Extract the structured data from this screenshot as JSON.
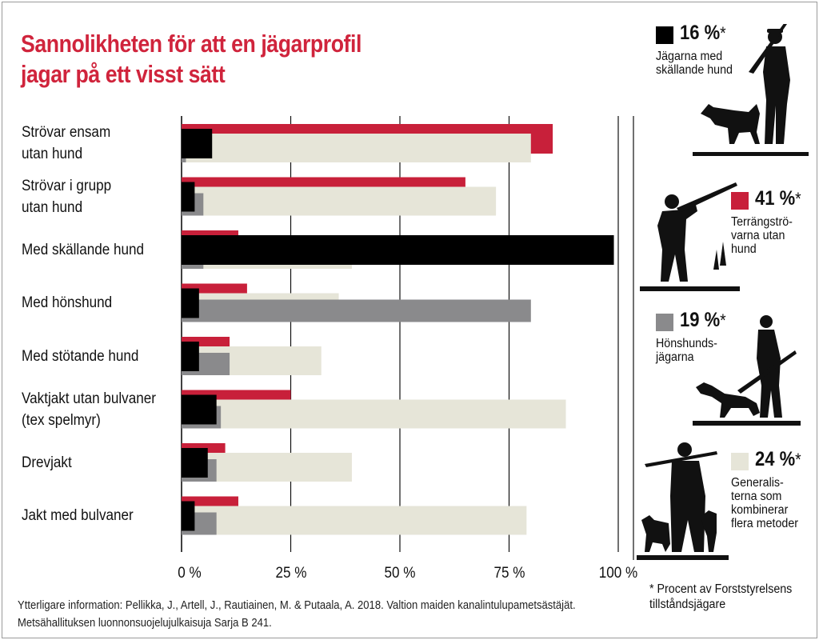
{
  "title_lines": [
    "Sannolikheten för att en jägarprofil",
    "jagar på ett visst sätt"
  ],
  "source_lines": [
    "Ytterligare information: Pellikka, J., Artell, J., Rautiainen, M. & Putaala, A. 2018. Valtion maiden kanalintulupametsästäjät.",
    "Metsähallituksen luonnonsuojelujulkaisuja Sarja B 241."
  ],
  "colors": {
    "title": "#d0243c",
    "skallande": "#000000",
    "terrang": "#c8203a",
    "honshund": "#8a8a8c",
    "general": "#e6e5d8",
    "grid": "#111111"
  },
  "legend": [
    {
      "pct": "16 %",
      "star": "*",
      "desc_lines": [
        "Jägarna med",
        "skällande hund"
      ],
      "icon": "hunter-with-barking-dog-silhouette"
    },
    {
      "pct": "41 %",
      "star": "*",
      "desc_lines": [
        "Terrängströ-",
        "varna utan",
        "hund"
      ],
      "icon": "hunter-aiming-rifle-silhouette"
    },
    {
      "pct": "19 %",
      "star": "*",
      "desc_lines": [
        "Hönshunds-",
        "jägarna"
      ],
      "icon": "hunter-with-pointer-dog-silhouette"
    },
    {
      "pct": "24 %",
      "star": "*",
      "desc_lines": [
        "Generalis-",
        "terna som",
        "kombinerar",
        "flera metoder"
      ],
      "icon": "hunter-with-dogs-silhouette"
    }
  ],
  "footnote_lines": [
    "* Procent av Forststyrelsens",
    "tillståndsjägare"
  ],
  "chart_data": {
    "type": "bar",
    "orientation": "horizontal",
    "categories": [
      [
        "Strövar ensam",
        "utan hund"
      ],
      [
        "Strövar i grupp",
        "utan hund"
      ],
      [
        "Med skällande hund"
      ],
      [
        "Med hönshund"
      ],
      [
        "Med stötande hund"
      ],
      [
        "Vaktjakt utan bulvaner",
        "(tex spelmyr)"
      ],
      [
        "Drevjakt"
      ],
      [
        "Jakt med bulvaner"
      ]
    ],
    "series": [
      {
        "key": "terrang",
        "values": [
          85,
          65,
          13,
          15,
          11,
          25,
          10,
          13
        ]
      },
      {
        "key": "general",
        "values": [
          80,
          72,
          39,
          36,
          32,
          88,
          39,
          79
        ]
      },
      {
        "key": "honshund",
        "values": [
          1,
          5,
          5,
          80,
          11,
          9,
          8,
          8
        ]
      },
      {
        "key": "skallande",
        "values": [
          7,
          3,
          99,
          4,
          4,
          8,
          6,
          3
        ]
      }
    ],
    "xlim": [
      0,
      100
    ],
    "x_ticks": [
      "0 %",
      "25 %",
      "50 %",
      "75 %",
      "100 %"
    ],
    "grid": true
  }
}
